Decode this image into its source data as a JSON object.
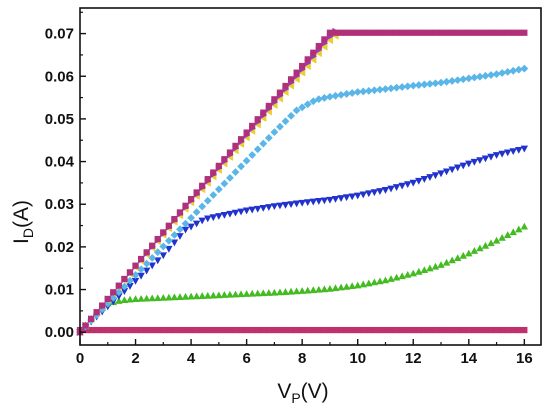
{
  "chart_data": {
    "type": "scatter",
    "title": "",
    "xlabel": {
      "main": "V",
      "sub": "P",
      "unit": "(V)"
    },
    "ylabel": {
      "main": "I",
      "sub": "D",
      "unit": "(A)"
    },
    "xlim": [
      0,
      16.6
    ],
    "ylim": [
      -0.003,
      0.076
    ],
    "xticks": [
      0,
      2,
      4,
      6,
      8,
      10,
      12,
      14,
      16
    ],
    "yticks": [
      0.0,
      0.01,
      0.02,
      0.03,
      0.04,
      0.05,
      0.06,
      0.07
    ],
    "ytick_labels": [
      "0.00",
      "0.01",
      "0.02",
      "0.03",
      "0.04",
      "0.05",
      "0.06",
      "0.07"
    ],
    "grid": false,
    "legend": "none",
    "series": [
      {
        "marker": "square",
        "color": "#c0306a",
        "points": [
          [
            0,
            0.0005
          ],
          [
            2,
            0.0005
          ],
          [
            4,
            0.0005
          ],
          [
            6,
            0.0005
          ],
          [
            8,
            0.0005
          ],
          [
            10,
            0.0005
          ],
          [
            12,
            0.0005
          ],
          [
            14,
            0.0005
          ],
          [
            16,
            0.0005
          ]
        ]
      },
      {
        "marker": "triangle-up",
        "color": "#44bb22",
        "points": [
          [
            0,
            0.0
          ],
          [
            0.5,
            0.004
          ],
          [
            1,
            0.0068
          ],
          [
            1.5,
            0.0075
          ],
          [
            2,
            0.0078
          ],
          [
            3,
            0.0081
          ],
          [
            4,
            0.0084
          ],
          [
            5,
            0.0087
          ],
          [
            6,
            0.009
          ],
          [
            7,
            0.0093
          ],
          [
            8,
            0.0097
          ],
          [
            9,
            0.0102
          ],
          [
            10,
            0.011
          ],
          [
            11,
            0.0122
          ],
          [
            12,
            0.0138
          ],
          [
            13,
            0.0158
          ],
          [
            14,
            0.0185
          ],
          [
            15,
            0.0215
          ],
          [
            16,
            0.0248
          ]
        ]
      },
      {
        "marker": "triangle-down",
        "color": "#2233cc",
        "points": [
          [
            0,
            0.0
          ],
          [
            1,
            0.006
          ],
          [
            2,
            0.012
          ],
          [
            3,
            0.018
          ],
          [
            3.8,
            0.024
          ],
          [
            4.5,
            0.0265
          ],
          [
            5,
            0.0272
          ],
          [
            6,
            0.0285
          ],
          [
            7,
            0.0295
          ],
          [
            8,
            0.0303
          ],
          [
            9,
            0.031
          ],
          [
            10,
            0.032
          ],
          [
            11,
            0.0333
          ],
          [
            12,
            0.035
          ],
          [
            13,
            0.0372
          ],
          [
            14,
            0.0395
          ],
          [
            15,
            0.0415
          ],
          [
            16,
            0.043
          ]
        ]
      },
      {
        "marker": "diamond",
        "color": "#5ab6e8",
        "points": [
          [
            0,
            0.0
          ],
          [
            1,
            0.0067
          ],
          [
            2,
            0.0134
          ],
          [
            3,
            0.0201
          ],
          [
            4,
            0.0268
          ],
          [
            5,
            0.0335
          ],
          [
            6,
            0.0402
          ],
          [
            7,
            0.0469
          ],
          [
            7.8,
            0.052
          ],
          [
            8.5,
            0.0545
          ],
          [
            9,
            0.0552
          ],
          [
            10,
            0.0563
          ],
          [
            11,
            0.057
          ],
          [
            12,
            0.0578
          ],
          [
            13,
            0.0585
          ],
          [
            14,
            0.0595
          ],
          [
            15,
            0.0605
          ],
          [
            16,
            0.0618
          ]
        ]
      },
      {
        "marker": "triangle-left",
        "color": "#e8d030",
        "points": [
          [
            0,
            0.0
          ],
          [
            1,
            0.0076
          ],
          [
            2,
            0.0152
          ],
          [
            3,
            0.0228
          ],
          [
            4,
            0.0304
          ],
          [
            5,
            0.038
          ],
          [
            6,
            0.0456
          ],
          [
            7,
            0.0532
          ],
          [
            8,
            0.0608
          ],
          [
            8.5,
            0.0646
          ],
          [
            9,
            0.0684
          ],
          [
            9.3,
            0.07
          ]
        ]
      },
      {
        "marker": "triangle-right",
        "color": "#9a3ab8",
        "points": [
          [
            0,
            0.0
          ],
          [
            1,
            0.0077
          ],
          [
            2,
            0.0154
          ],
          [
            3,
            0.0231
          ],
          [
            4,
            0.0308
          ],
          [
            5,
            0.0385
          ],
          [
            6,
            0.0462
          ],
          [
            7,
            0.0539
          ],
          [
            8,
            0.0616
          ],
          [
            8.5,
            0.0654
          ],
          [
            9,
            0.0693
          ],
          [
            9.2,
            0.0705
          ]
        ]
      },
      {
        "marker": "square",
        "color": "#b0307a",
        "points": [
          [
            0,
            0.0
          ],
          [
            1,
            0.0078
          ],
          [
            2,
            0.0156
          ],
          [
            3,
            0.0234
          ],
          [
            4,
            0.0312
          ],
          [
            5,
            0.039
          ],
          [
            6,
            0.0468
          ],
          [
            7,
            0.0546
          ],
          [
            8,
            0.0624
          ],
          [
            9,
            0.0702
          ],
          [
            10,
            0.0702
          ],
          [
            11,
            0.0702
          ],
          [
            12,
            0.0702
          ],
          [
            13,
            0.0702
          ],
          [
            14,
            0.0702
          ],
          [
            15,
            0.0702
          ],
          [
            16,
            0.0702
          ]
        ]
      }
    ]
  }
}
